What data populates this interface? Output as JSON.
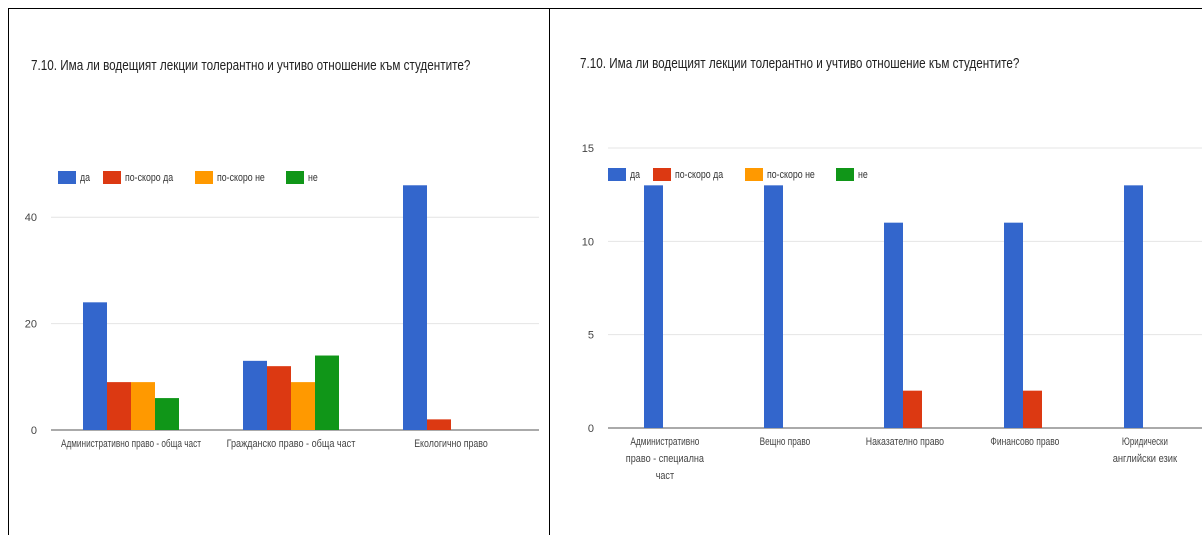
{
  "chart_data": [
    {
      "type": "bar",
      "title": "7.10. Има ли водещият лекции толерантно и учтиво отношение към студентите?",
      "categories": [
        "Административно право - обща част",
        "Гражданско право - обща част",
        "Екологично право"
      ],
      "category_lines": [
        [
          "Административно право - обща част"
        ],
        [
          "Гражданско право - обща част"
        ],
        [
          "Екологично право"
        ]
      ],
      "series": [
        {
          "name": "да",
          "color": "#3366CC",
          "values": [
            24,
            13,
            46
          ]
        },
        {
          "name": "по-скоро да",
          "color": "#DC3912",
          "values": [
            9,
            12,
            2
          ]
        },
        {
          "name": "по-скоро не",
          "color": "#FF9900",
          "values": [
            9,
            9,
            0
          ]
        },
        {
          "name": "не",
          "color": "#109618",
          "values": [
            6,
            14,
            0
          ]
        }
      ],
      "yticks": [
        0,
        20,
        40
      ],
      "ylim": [
        0,
        50
      ],
      "grid": true,
      "legend": "top-left"
    },
    {
      "type": "bar",
      "title": "7.10. Има ли водещият лекции толерантно и учтиво отношение към студентите?",
      "categories": [
        "Административно право - специална част",
        "Вещно право",
        "Наказателно право",
        "Финансово право",
        "Юридически английски език"
      ],
      "category_lines": [
        [
          "Административно",
          "право - специална",
          "част"
        ],
        [
          "Вещно право"
        ],
        [
          "Наказателно право"
        ],
        [
          "Финансово право"
        ],
        [
          "Юридически",
          "английски език"
        ]
      ],
      "series": [
        {
          "name": "да",
          "color": "#3366CC",
          "values": [
            13,
            13,
            11,
            11,
            13
          ]
        },
        {
          "name": "по-скоро да",
          "color": "#DC3912",
          "values": [
            0,
            0,
            2,
            2,
            0
          ]
        },
        {
          "name": "по-скоро не",
          "color": "#FF9900",
          "values": [
            0,
            0,
            0,
            0,
            0
          ]
        },
        {
          "name": "не",
          "color": "#109618",
          "values": [
            0,
            0,
            0,
            0,
            0
          ]
        }
      ],
      "yticks": [
        0,
        5,
        10,
        15
      ],
      "ylim": [
        0,
        15
      ],
      "grid": true,
      "legend": "top-left"
    }
  ]
}
